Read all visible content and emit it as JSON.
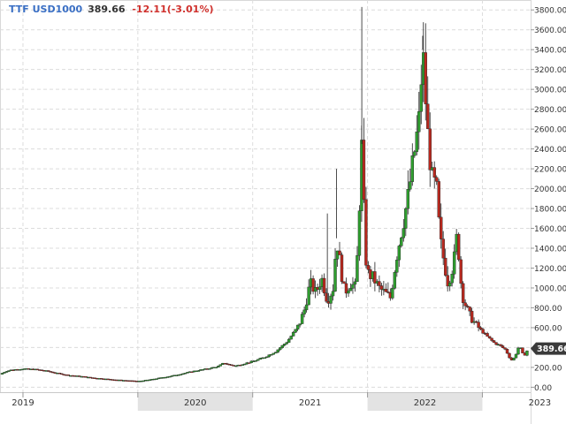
{
  "header": {
    "symbol": "TTF USD1000",
    "last": "389.66",
    "change": "-12.11(-3.01%)"
  },
  "colors": {
    "up": "#2e9e2e",
    "down": "#b8281e",
    "header_symbol": "#3a6fc4",
    "header_change": "#d0312d",
    "last_price_tag": "#3a3a3a",
    "x_band": "#e3e3e3",
    "grid": "#dcdcdc"
  },
  "chart_data": {
    "type": "candlestick",
    "title": "",
    "xlabel": "",
    "ylabel": "",
    "ylim": [
      -50,
      3900
    ],
    "y_ticks": [
      0,
      200,
      400,
      600,
      800,
      1000,
      1200,
      1400,
      1600,
      1800,
      2000,
      2200,
      2400,
      2600,
      2800,
      3000,
      3200,
      3400,
      3600,
      3800
    ],
    "y_tick_labels": [
      "0.00",
      "200.00",
      "400.00",
      "600.00",
      "800.00",
      "1000.00",
      "1200.00",
      "1400.00",
      "1600.00",
      "1800.00",
      "2000.00",
      "2200.00",
      "2400.00",
      "2600.00",
      "2800.00",
      "3000.00",
      "3200.00",
      "3400.00",
      "3600.00",
      "3800.00"
    ],
    "x_range": [
      2018.8,
      2023.42
    ],
    "x_year_ticks": [
      2019,
      2020,
      2021,
      2022,
      2023
    ],
    "x_labels": [
      {
        "label": "2019",
        "x": 2019.0
      },
      {
        "label": "2020",
        "x": 2020.5
      },
      {
        "label": "2021",
        "x": 2021.5
      },
      {
        "label": "2022",
        "x": 2022.5
      },
      {
        "label": "2023",
        "x": 2023.5
      }
    ],
    "shaded_years": [
      2020,
      2022
    ],
    "grid": true,
    "last_price": 389.66,
    "last_price_label": "389.66",
    "series": [
      {
        "t": 2018.8,
        "c": 130
      },
      {
        "t": 2018.85,
        "c": 160
      },
      {
        "t": 2018.9,
        "c": 175
      },
      {
        "t": 2019.0,
        "c": 185
      },
      {
        "t": 2019.1,
        "c": 180
      },
      {
        "t": 2019.2,
        "c": 165
      },
      {
        "t": 2019.3,
        "c": 140
      },
      {
        "t": 2019.4,
        "c": 120
      },
      {
        "t": 2019.5,
        "c": 110
      },
      {
        "t": 2019.6,
        "c": 95
      },
      {
        "t": 2019.7,
        "c": 85
      },
      {
        "t": 2019.8,
        "c": 75
      },
      {
        "t": 2019.9,
        "c": 68
      },
      {
        "t": 2020.0,
        "c": 60
      },
      {
        "t": 2020.1,
        "c": 75
      },
      {
        "t": 2020.2,
        "c": 95
      },
      {
        "t": 2020.3,
        "c": 115
      },
      {
        "t": 2020.4,
        "c": 140
      },
      {
        "t": 2020.5,
        "c": 165
      },
      {
        "t": 2020.6,
        "c": 185
      },
      {
        "t": 2020.7,
        "c": 210
      },
      {
        "t": 2020.75,
        "c": 245
      },
      {
        "t": 2020.8,
        "c": 225
      },
      {
        "t": 2020.85,
        "c": 215
      },
      {
        "t": 2020.9,
        "c": 230
      },
      {
        "t": 2021.0,
        "c": 260
      },
      {
        "t": 2021.1,
        "c": 300
      },
      {
        "t": 2021.2,
        "c": 360
      },
      {
        "t": 2021.3,
        "c": 460
      },
      {
        "t": 2021.4,
        "c": 620
      },
      {
        "t": 2021.45,
        "c": 780
      },
      {
        "t": 2021.5,
        "c": 1050
      },
      {
        "t": 2021.55,
        "c": 950
      },
      {
        "t": 2021.6,
        "c": 1100
      },
      {
        "t": 2021.65,
        "c": 870
      },
      {
        "t": 2021.7,
        "c": 1000
      },
      {
        "t": 2021.73,
        "c": 1500
      },
      {
        "t": 2021.76,
        "c": 1250
      },
      {
        "t": 2021.8,
        "c": 950
      },
      {
        "t": 2021.85,
        "c": 1050
      },
      {
        "t": 2021.9,
        "c": 1000
      },
      {
        "t": 2021.95,
        "c": 2450
      },
      {
        "t": 2021.98,
        "c": 1350
      },
      {
        "t": 2022.0,
        "c": 1150
      },
      {
        "t": 2022.05,
        "c": 1100
      },
      {
        "t": 2022.1,
        "c": 1000
      },
      {
        "t": 2022.15,
        "c": 950
      },
      {
        "t": 2022.2,
        "c": 900
      },
      {
        "t": 2022.25,
        "c": 1300
      },
      {
        "t": 2022.3,
        "c": 1600
      },
      {
        "t": 2022.35,
        "c": 1900
      },
      {
        "t": 2022.4,
        "c": 2300
      },
      {
        "t": 2022.45,
        "c": 2700
      },
      {
        "t": 2022.48,
        "c": 3400
      },
      {
        "t": 2022.52,
        "c": 2600
      },
      {
        "t": 2022.56,
        "c": 2100
      },
      {
        "t": 2022.6,
        "c": 2000
      },
      {
        "t": 2022.63,
        "c": 1500
      },
      {
        "t": 2022.66,
        "c": 1300
      },
      {
        "t": 2022.7,
        "c": 1050
      },
      {
        "t": 2022.75,
        "c": 1250
      },
      {
        "t": 2022.78,
        "c": 1550
      },
      {
        "t": 2022.82,
        "c": 950
      },
      {
        "t": 2022.86,
        "c": 800
      },
      {
        "t": 2022.9,
        "c": 700
      },
      {
        "t": 2022.95,
        "c": 620
      },
      {
        "t": 2023.0,
        "c": 560
      },
      {
        "t": 2023.05,
        "c": 500
      },
      {
        "t": 2023.1,
        "c": 450
      },
      {
        "t": 2023.15,
        "c": 420
      },
      {
        "t": 2023.2,
        "c": 380
      },
      {
        "t": 2023.25,
        "c": 270
      },
      {
        "t": 2023.28,
        "c": 300
      },
      {
        "t": 2023.32,
        "c": 420
      },
      {
        "t": 2023.36,
        "c": 310
      },
      {
        "t": 2023.4,
        "c": 389.66
      }
    ]
  }
}
